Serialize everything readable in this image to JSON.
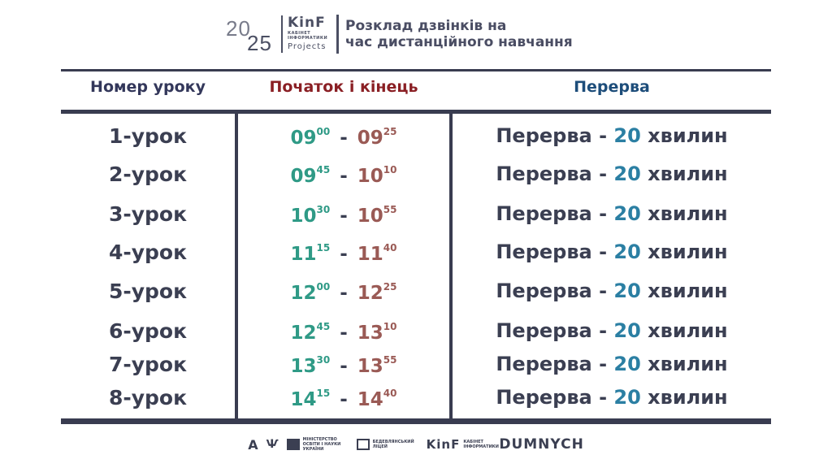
{
  "header": {
    "year_top": "20",
    "year_bottom": "25",
    "brand": "KinF",
    "brand_sub": "КАБІНЕТ ІНФОРМАТИКИ",
    "brand_projects": "Projects",
    "title_line1": "Розклад дзвінків на",
    "title_line2": "час дистанційного навчання"
  },
  "table": {
    "headers": [
      "Номер уроку",
      "Початок і кінець",
      "Перерва"
    ],
    "rows": [
      {
        "lesson": "1-урок",
        "start_h": "09",
        "start_m": "00",
        "end_h": "09",
        "end_m": "25",
        "break_label": "Перерва -",
        "break_num": "20",
        "break_unit": "хвилин"
      },
      {
        "lesson": "2-урок",
        "start_h": "09",
        "start_m": "45",
        "end_h": "10",
        "end_m": "10",
        "break_label": "Перерва -",
        "break_num": "20",
        "break_unit": "хвилин"
      },
      {
        "lesson": "3-урок",
        "start_h": "10",
        "start_m": "30",
        "end_h": "10",
        "end_m": "55",
        "break_label": "Перерва -",
        "break_num": "20",
        "break_unit": "хвилин"
      },
      {
        "lesson": "4-урок",
        "start_h": "11",
        "start_m": "15",
        "end_h": "11",
        "end_m": "40",
        "break_label": "Перерва -",
        "break_num": "20",
        "break_unit": "хвилин"
      },
      {
        "lesson": "5-урок",
        "start_h": "12",
        "start_m": "00",
        "end_h": "12",
        "end_m": "25",
        "break_label": "Перерва -",
        "break_num": "20",
        "break_unit": "хвилин"
      },
      {
        "lesson": "6-урок",
        "start_h": "12",
        "start_m": "45",
        "end_h": "13",
        "end_m": "10",
        "break_label": "Перерва -",
        "break_num": "20",
        "break_unit": "хвилин"
      },
      {
        "lesson": "7-урок",
        "start_h": "13",
        "start_m": "30",
        "end_h": "13",
        "end_m": "55",
        "break_label": "Перерва -",
        "break_num": "20",
        "break_unit": "хвилин"
      },
      {
        "lesson": "8-урок",
        "start_h": "14",
        "start_m": "15",
        "end_h": "14",
        "end_m": "40",
        "break_label": "Перерва -",
        "break_num": "20",
        "break_unit": "хвилин"
      }
    ]
  },
  "footer": {
    "logo_a": "A",
    "logo_tryzub": "Ѱ",
    "ministry": "МІНІСТЕРСТВО ОСВІТИ І НАУКИ УКРАЇНИ",
    "lyceum": "БЕДЕВЛЯНСЬКИЙ ЛІЦЕЙ",
    "kinf": "KinF",
    "kinf_sub": "КАБІНЕТ ІНФОРМАТИКИ",
    "dumnych": "DUMNYCH"
  },
  "colors": {
    "dark": "#393c50",
    "start_time": "#2f9a86",
    "end_time": "#9a5a55",
    "header_start_end": "#8a1f24",
    "header_break": "#1d4d7a",
    "break_number": "#2b7fa3"
  }
}
